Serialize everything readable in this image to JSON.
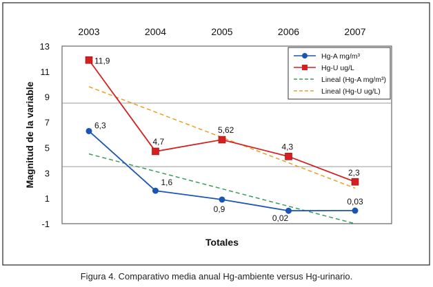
{
  "caption": "Figura 4. Comparativo media anual Hg-ambiente versus Hg-urinario.",
  "chart_data": {
    "type": "line",
    "xlabel": "Totales",
    "ylabel": "Magnitud de la variable",
    "categories": [
      "2003",
      "2004",
      "2005",
      "2006",
      "2007"
    ],
    "ylim": [
      -1,
      13
    ],
    "yticks": [
      -1,
      1,
      3,
      5,
      7,
      9,
      11,
      13
    ],
    "gridlines": [
      3.5,
      8.5
    ],
    "legend_position": "top-right",
    "series": [
      {
        "name": "Hg-A mg/m³",
        "values": [
          6.3,
          1.6,
          0.9,
          0.02,
          0.03
        ],
        "labels": [
          "6,3",
          "1,6",
          "0,9",
          "0,02",
          "0,03"
        ],
        "color": "#1a55b5",
        "marker": "circle"
      },
      {
        "name": "Hg-U ug/L",
        "values": [
          11.9,
          4.7,
          5.62,
          4.3,
          2.3
        ],
        "labels": [
          "11,9",
          "4,7",
          "5,62",
          "4,3",
          "2,3"
        ],
        "color": "#d42020",
        "marker": "square"
      }
    ],
    "trendlines": [
      {
        "name": "Lineal (Hg-A mg/m³)",
        "color": "#3a9a5a",
        "start": 4.5,
        "end": -1.0
      },
      {
        "name": "Lineal (Hg-U ug/L)",
        "color": "#e8a020",
        "start": 9.8,
        "end": 1.8
      }
    ],
    "colors": {
      "axis": "#333333",
      "grid": "#9a9a9a",
      "frame": "#222222"
    }
  }
}
